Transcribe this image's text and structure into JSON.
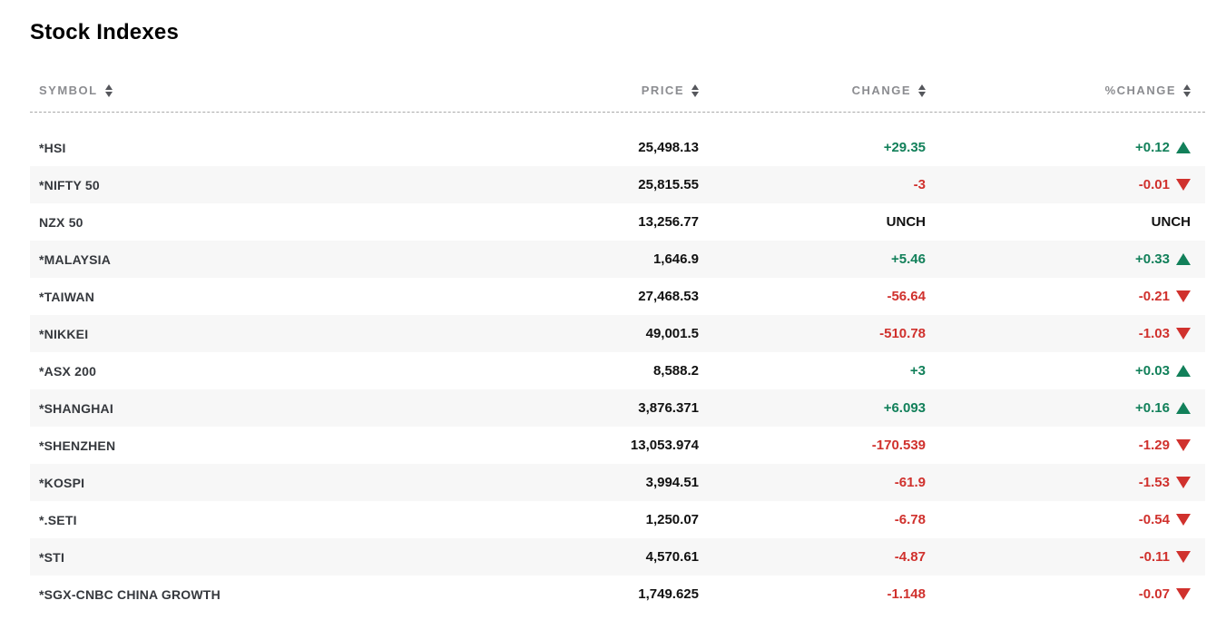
{
  "title": "Stock Indexes",
  "colors": {
    "positive": "#12805a",
    "negative": "#d0312d",
    "neutral": "#111111",
    "row_stripe": "#f7f7f7",
    "header_text": "#8b8c90"
  },
  "table": {
    "columns": [
      {
        "key": "symbol",
        "label": "SYMBOL"
      },
      {
        "key": "price",
        "label": "PRICE"
      },
      {
        "key": "change",
        "label": "CHANGE"
      },
      {
        "key": "pct_change",
        "label": "%CHANGE"
      }
    ],
    "sort_icon": "sort-up-down-icon",
    "arrow_up_icon": "triangle-up-icon",
    "arrow_down_icon": "triangle-down-icon",
    "rows": [
      {
        "symbol": "*HSI",
        "price": "25,498.13",
        "change": "+29.35",
        "pct_change": "+0.12",
        "direction": "up"
      },
      {
        "symbol": "*NIFTY 50",
        "price": "25,815.55",
        "change": "-3",
        "pct_change": "-0.01",
        "direction": "down"
      },
      {
        "symbol": "NZX 50",
        "price": "13,256.77",
        "change": "UNCH",
        "pct_change": "UNCH",
        "direction": "none"
      },
      {
        "symbol": "*MALAYSIA",
        "price": "1,646.9",
        "change": "+5.46",
        "pct_change": "+0.33",
        "direction": "up"
      },
      {
        "symbol": "*TAIWAN",
        "price": "27,468.53",
        "change": "-56.64",
        "pct_change": "-0.21",
        "direction": "down"
      },
      {
        "symbol": "*NIKKEI",
        "price": "49,001.5",
        "change": "-510.78",
        "pct_change": "-1.03",
        "direction": "down"
      },
      {
        "symbol": "*ASX 200",
        "price": "8,588.2",
        "change": "+3",
        "pct_change": "+0.03",
        "direction": "up"
      },
      {
        "symbol": "*SHANGHAI",
        "price": "3,876.371",
        "change": "+6.093",
        "pct_change": "+0.16",
        "direction": "up"
      },
      {
        "symbol": "*SHENZHEN",
        "price": "13,053.974",
        "change": "-170.539",
        "pct_change": "-1.29",
        "direction": "down"
      },
      {
        "symbol": "*KOSPI",
        "price": "3,994.51",
        "change": "-61.9",
        "pct_change": "-1.53",
        "direction": "down"
      },
      {
        "symbol": "*.SETI",
        "price": "1,250.07",
        "change": "-6.78",
        "pct_change": "-0.54",
        "direction": "down"
      },
      {
        "symbol": "*STI",
        "price": "4,570.61",
        "change": "-4.87",
        "pct_change": "-0.11",
        "direction": "down"
      },
      {
        "symbol": "*SGX-CNBC CHINA GROWTH",
        "price": "1,749.625",
        "change": "-1.148",
        "pct_change": "-0.07",
        "direction": "down"
      }
    ]
  }
}
